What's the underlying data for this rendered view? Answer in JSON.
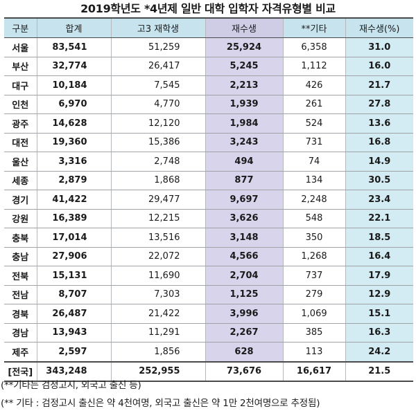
{
  "title": "2019학년도 *4년제 일반 대학 입학자 자격유형별 비교",
  "table": {
    "headers": [
      "구분",
      "합계",
      "고3 재학생",
      "재수생",
      "**기타",
      "재수생(%)"
    ],
    "rows": [
      {
        "region": "서울",
        "total": "83,541",
        "grad": "51,259",
        "jaesu": "25,924",
        "other": "6,358",
        "ratio": "31.0"
      },
      {
        "region": "부산",
        "total": "32,774",
        "grad": "26,417",
        "jaesu": "5,245",
        "other": "1,112",
        "ratio": "16.0"
      },
      {
        "region": "대구",
        "total": "10,184",
        "grad": "7,545",
        "jaesu": "2,213",
        "other": "426",
        "ratio": "21.7"
      },
      {
        "region": "인천",
        "total": "6,970",
        "grad": "4,770",
        "jaesu": "1,939",
        "other": "261",
        "ratio": "27.8"
      },
      {
        "region": "광주",
        "total": "14,628",
        "grad": "12,120",
        "jaesu": "1,984",
        "other": "524",
        "ratio": "13.6"
      },
      {
        "region": "대전",
        "total": "19,360",
        "grad": "15,386",
        "jaesu": "3,243",
        "other": "731",
        "ratio": "16.8"
      },
      {
        "region": "울산",
        "total": "3,316",
        "grad": "2,748",
        "jaesu": "494",
        "other": "74",
        "ratio": "14.9"
      },
      {
        "region": "세종",
        "total": "2,879",
        "grad": "1,868",
        "jaesu": "877",
        "other": "134",
        "ratio": "30.5"
      },
      {
        "region": "경기",
        "total": "41,422",
        "grad": "29,477",
        "jaesu": "9,697",
        "other": "2,248",
        "ratio": "23.4"
      },
      {
        "region": "강원",
        "total": "16,389",
        "grad": "12,215",
        "jaesu": "3,626",
        "other": "548",
        "ratio": "22.1"
      },
      {
        "region": "충북",
        "total": "17,014",
        "grad": "13,516",
        "jaesu": "3,148",
        "other": "350",
        "ratio": "18.5"
      },
      {
        "region": "충남",
        "total": "27,906",
        "grad": "22,072",
        "jaesu": "4,566",
        "other": "1,268",
        "ratio": "16.4"
      },
      {
        "region": "전북",
        "total": "15,131",
        "grad": "11,690",
        "jaesu": "2,704",
        "other": "737",
        "ratio": "17.9"
      },
      {
        "region": "전남",
        "total": "8,707",
        "grad": "7,303",
        "jaesu": "1,125",
        "other": "279",
        "ratio": "12.9"
      },
      {
        "region": "경북",
        "total": "26,487",
        "grad": "21,422",
        "jaesu": "3,996",
        "other": "1,069",
        "ratio": "15.1"
      },
      {
        "region": "경남",
        "total": "13,943",
        "grad": "11,291",
        "jaesu": "2,267",
        "other": "385",
        "ratio": "16.3"
      },
      {
        "region": "제주",
        "total": "2,597",
        "grad": "1,856",
        "jaesu": "628",
        "other": "113",
        "ratio": "24.2"
      }
    ],
    "summary": {
      "region": "[전국]",
      "total": "343,248",
      "grad": "252,955",
      "jaesu": "73,676",
      "other": "16,617",
      "ratio": "21.5"
    }
  },
  "notes": {
    "note1": "(**기타는 검정고시, 외국고 출신 등)",
    "note2": "(** 기타 : 검정고시 출신은 약 4천여명, 외국고 출신은 약 1만 2천여명으로 추정됨)"
  },
  "colors": {
    "header_bg": "#c6e3ee",
    "jaesu_column_bg": "#d7d4ec",
    "ratio_column_bg": "#d3ebf2",
    "rule_color": "#4a4a4a"
  }
}
